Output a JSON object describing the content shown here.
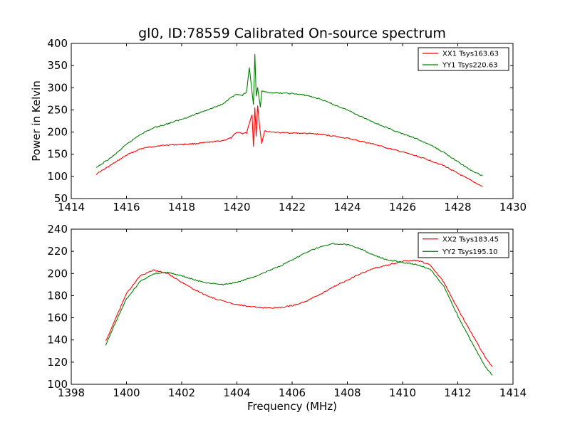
{
  "figure": {
    "title": "gl0, ID:78559 Calibrated On-source spectrum"
  },
  "chart_data": [
    {
      "type": "line",
      "title": "gl0, ID:78559 Calibrated On-source spectrum",
      "xlabel": "",
      "ylabel": "Power in Kelvin",
      "xlim": [
        1414,
        1430
      ],
      "ylim": [
        50,
        400
      ],
      "xticks": [
        1414,
        1416,
        1418,
        1420,
        1422,
        1424,
        1426,
        1428,
        1430
      ],
      "yticks": [
        50,
        100,
        150,
        200,
        250,
        300,
        350,
        400
      ],
      "legend_position": "top-right",
      "grid": false,
      "series": [
        {
          "name": "XX1 Tsys163.63",
          "color": "#ff0000",
          "x": [
            1414.9,
            1415.5,
            1416,
            1416.5,
            1417,
            1417.5,
            1418,
            1418.5,
            1419,
            1419.5,
            1419.8,
            1420.0,
            1420.2,
            1420.35,
            1420.45,
            1420.55,
            1420.6,
            1420.65,
            1420.7,
            1420.75,
            1420.85,
            1420.9,
            1421.0,
            1421.5,
            1422,
            1422.5,
            1423,
            1423.5,
            1424,
            1424.5,
            1425,
            1425.5,
            1426,
            1426.5,
            1427,
            1427.5,
            1428,
            1428.5,
            1428.9
          ],
          "y": [
            105,
            128,
            148,
            162,
            168,
            171,
            172,
            174,
            177,
            181,
            187,
            200,
            197,
            198,
            220,
            240,
            168,
            255,
            190,
            260,
            198,
            175,
            202,
            199,
            198,
            197,
            195,
            191,
            186,
            179,
            172,
            163,
            155,
            146,
            136,
            124,
            107,
            90,
            77
          ]
        },
        {
          "name": "YY1 Tsys220.63",
          "color": "#008000",
          "x": [
            1414.9,
            1415.5,
            1416,
            1416.5,
            1417,
            1417.5,
            1418,
            1418.5,
            1419,
            1419.5,
            1419.8,
            1420.0,
            1420.2,
            1420.35,
            1420.45,
            1420.55,
            1420.6,
            1420.65,
            1420.7,
            1420.75,
            1420.85,
            1420.9,
            1421.0,
            1421.5,
            1422,
            1422.5,
            1423,
            1423.5,
            1424,
            1424.5,
            1425,
            1425.5,
            1426,
            1426.5,
            1427,
            1427.5,
            1428,
            1428.5,
            1428.9
          ],
          "y": [
            119,
            145,
            172,
            195,
            210,
            219,
            229,
            240,
            252,
            263,
            280,
            285,
            283,
            290,
            345,
            290,
            262,
            375,
            280,
            300,
            255,
            293,
            290,
            288,
            287,
            283,
            275,
            262,
            250,
            235,
            221,
            208,
            196,
            185,
            171,
            154,
            133,
            113,
            101
          ]
        }
      ]
    },
    {
      "type": "line",
      "title": "",
      "xlabel": "Frequency (MHz)",
      "ylabel": "",
      "xlim": [
        1398,
        1414
      ],
      "ylim": [
        100,
        240
      ],
      "xticks": [
        1398,
        1400,
        1402,
        1404,
        1406,
        1408,
        1410,
        1412,
        1414
      ],
      "yticks": [
        100,
        120,
        140,
        160,
        180,
        200,
        220,
        240
      ],
      "legend_position": "top-right",
      "grid": false,
      "series": [
        {
          "name": "XX2 Tsys183.45",
          "color": "#ff0000",
          "x": [
            1399.25,
            1399.5,
            1400,
            1400.5,
            1401,
            1401.5,
            1402,
            1402.5,
            1403,
            1403.5,
            1404,
            1404.5,
            1405,
            1405.5,
            1406,
            1406.5,
            1407,
            1407.5,
            1408,
            1408.5,
            1409,
            1409.5,
            1410,
            1410.5,
            1411,
            1411.5,
            1412,
            1412.5,
            1413,
            1413.25
          ],
          "y": [
            139,
            153,
            182,
            198,
            203,
            200,
            192,
            185,
            179,
            175,
            172,
            170,
            169,
            169,
            171,
            175,
            181,
            188,
            194,
            200,
            205,
            208,
            211,
            212,
            208,
            192,
            168,
            146,
            124,
            116
          ]
        },
        {
          "name": "YY2 Tsys195.10",
          "color": "#008000",
          "x": [
            1399.25,
            1399.5,
            1400,
            1400.5,
            1401,
            1401.5,
            1402,
            1402.5,
            1403,
            1403.5,
            1404,
            1404.5,
            1405,
            1405.5,
            1406,
            1406.5,
            1407,
            1407.5,
            1408,
            1408.5,
            1409,
            1409.5,
            1410,
            1410.5,
            1411,
            1411.5,
            1412,
            1412.5,
            1413,
            1413.25
          ],
          "y": [
            135,
            150,
            177,
            193,
            200,
            201,
            198,
            194,
            191,
            190,
            192,
            196,
            201,
            206,
            212,
            219,
            224,
            227,
            226,
            222,
            216,
            212,
            210,
            208,
            204,
            188,
            162,
            138,
            116,
            108
          ]
        }
      ]
    }
  ]
}
